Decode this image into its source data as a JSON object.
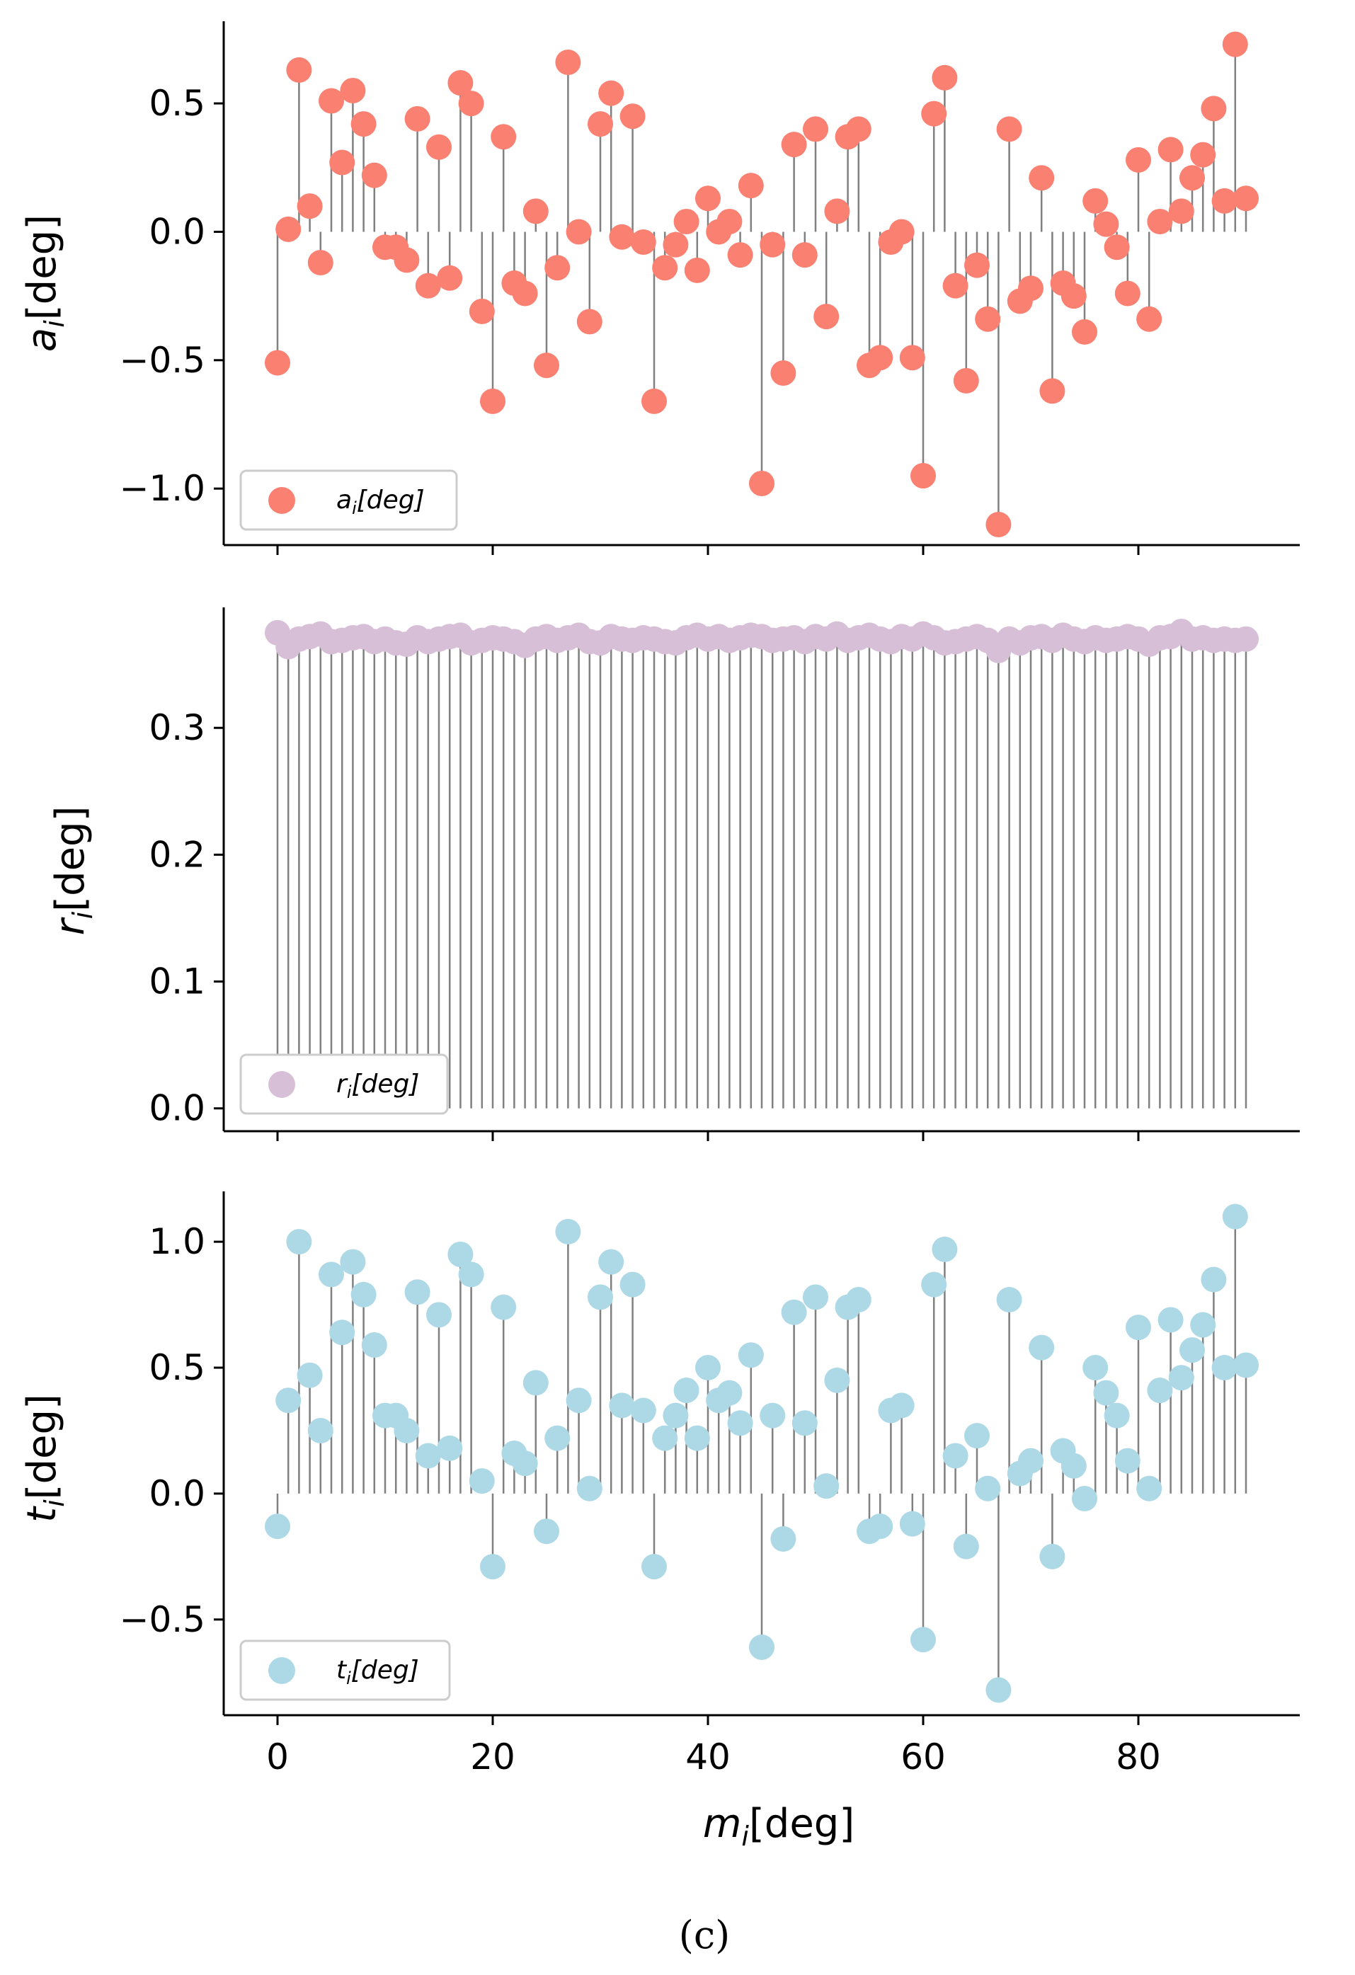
{
  "figure_caption": "(c)",
  "x_tick_labels": [
    "0",
    "20",
    "40",
    "60",
    "80"
  ],
  "chart_data": [
    {
      "type": "stem",
      "panel": "top",
      "series_name": "a_i[deg]",
      "xlabel_main": "m",
      "xlabel_sub": "i",
      "xlabel_rest": "[deg]",
      "ylabel_main": "a",
      "ylabel_sub": "i",
      "ylabel_rest": "[deg]",
      "legend_main": "a",
      "legend_sub": "i",
      "legend_rest": "[deg]",
      "legend_position": "lower-left",
      "color": "#fa8072",
      "xlim": [
        -5,
        95
      ],
      "ylim": [
        -1.22,
        0.82
      ],
      "yticks": [
        -1.0,
        -0.5,
        0.0,
        0.5
      ],
      "ytick_labels": [
        "−1.0",
        "−0.5",
        "0.0",
        "0.5"
      ],
      "show_x_tick_labels": false,
      "x": [
        0,
        1,
        2,
        3,
        4,
        5,
        6,
        7,
        8,
        9,
        10,
        11,
        12,
        13,
        14,
        15,
        16,
        17,
        18,
        19,
        20,
        21,
        22,
        23,
        24,
        25,
        26,
        27,
        28,
        29,
        30,
        31,
        32,
        33,
        34,
        35,
        36,
        37,
        38,
        39,
        40,
        41,
        42,
        43,
        44,
        45,
        46,
        47,
        48,
        49,
        50,
        51,
        52,
        53,
        54,
        55,
        56,
        57,
        58,
        59,
        60,
        61,
        62,
        63,
        64,
        65,
        66,
        67,
        68,
        69,
        70,
        71,
        72,
        73,
        74,
        75,
        76,
        77,
        78,
        79,
        80,
        81,
        82,
        83,
        84,
        85,
        86,
        87,
        88,
        89,
        90
      ],
      "values": [
        -0.51,
        0.01,
        0.63,
        0.1,
        -0.12,
        0.51,
        0.27,
        0.55,
        0.42,
        0.22,
        -0.06,
        -0.06,
        -0.11,
        0.44,
        -0.21,
        0.33,
        -0.18,
        0.58,
        0.5,
        -0.31,
        -0.66,
        0.37,
        -0.2,
        -0.24,
        0.08,
        -0.52,
        -0.14,
        0.66,
        0.0,
        -0.35,
        0.42,
        0.54,
        -0.02,
        0.45,
        -0.04,
        -0.66,
        -0.14,
        -0.05,
        0.04,
        -0.15,
        0.13,
        0.0,
        0.04,
        -0.09,
        0.18,
        -0.98,
        -0.05,
        -0.55,
        0.34,
        -0.09,
        0.4,
        -0.33,
        0.08,
        0.37,
        0.4,
        -0.52,
        -0.49,
        -0.04,
        0.0,
        -0.49,
        -0.95,
        0.46,
        0.6,
        -0.21,
        -0.58,
        -0.13,
        -0.34,
        -1.14,
        0.4,
        -0.27,
        -0.22,
        0.21,
        -0.62,
        -0.2,
        -0.25,
        -0.39,
        0.12,
        0.03,
        -0.06,
        -0.24,
        0.28,
        -0.34,
        0.04,
        0.32,
        0.08,
        0.21,
        0.3,
        0.48,
        0.12,
        0.73,
        0.13
      ]
    },
    {
      "type": "stem",
      "panel": "middle",
      "series_name": "r_i[deg]",
      "ylabel_main": "r",
      "ylabel_sub": "i",
      "ylabel_rest": "[deg]",
      "legend_main": "r",
      "legend_sub": "i",
      "legend_rest": "[deg]",
      "legend_position": "lower-left",
      "color": "#d8bfd8",
      "xlim": [
        -5,
        95
      ],
      "ylim": [
        -0.018,
        0.395
      ],
      "yticks": [
        0.0,
        0.1,
        0.2,
        0.3
      ],
      "ytick_labels": [
        "0.0",
        "0.1",
        "0.2",
        "0.3"
      ],
      "show_x_tick_labels": false,
      "x": [
        0,
        1,
        2,
        3,
        4,
        5,
        6,
        7,
        8,
        9,
        10,
        11,
        12,
        13,
        14,
        15,
        16,
        17,
        18,
        19,
        20,
        21,
        22,
        23,
        24,
        25,
        26,
        27,
        28,
        29,
        30,
        31,
        32,
        33,
        34,
        35,
        36,
        37,
        38,
        39,
        40,
        41,
        42,
        43,
        44,
        45,
        46,
        47,
        48,
        49,
        50,
        51,
        52,
        53,
        54,
        55,
        56,
        57,
        58,
        59,
        60,
        61,
        62,
        63,
        64,
        65,
        66,
        67,
        68,
        69,
        70,
        71,
        72,
        73,
        74,
        75,
        76,
        77,
        78,
        79,
        80,
        81,
        82,
        83,
        84,
        85,
        86,
        87,
        88,
        89,
        90
      ],
      "values": [
        0.375,
        0.364,
        0.37,
        0.372,
        0.374,
        0.368,
        0.369,
        0.371,
        0.372,
        0.368,
        0.37,
        0.367,
        0.366,
        0.371,
        0.368,
        0.37,
        0.372,
        0.373,
        0.367,
        0.369,
        0.371,
        0.37,
        0.368,
        0.365,
        0.37,
        0.372,
        0.369,
        0.371,
        0.373,
        0.368,
        0.367,
        0.372,
        0.37,
        0.369,
        0.371,
        0.37,
        0.368,
        0.367,
        0.371,
        0.373,
        0.37,
        0.372,
        0.369,
        0.371,
        0.373,
        0.372,
        0.369,
        0.37,
        0.371,
        0.368,
        0.372,
        0.37,
        0.374,
        0.369,
        0.371,
        0.373,
        0.37,
        0.368,
        0.372,
        0.37,
        0.374,
        0.371,
        0.367,
        0.368,
        0.37,
        0.372,
        0.369,
        0.361,
        0.37,
        0.367,
        0.371,
        0.372,
        0.369,
        0.373,
        0.37,
        0.368,
        0.371,
        0.369,
        0.37,
        0.372,
        0.37,
        0.366,
        0.371,
        0.372,
        0.376,
        0.37,
        0.371,
        0.369,
        0.37,
        0.369,
        0.37
      ]
    },
    {
      "type": "stem",
      "panel": "bottom",
      "series_name": "t_i[deg]",
      "xlabel_main": "m",
      "xlabel_sub": "i",
      "xlabel_rest": "[deg]",
      "ylabel_main": "t",
      "ylabel_sub": "i",
      "ylabel_rest": "[deg]",
      "legend_main": "t",
      "legend_sub": "i",
      "legend_rest": "[deg]",
      "legend_position": "lower-left",
      "color": "#add8e6",
      "xlim": [
        -5,
        95
      ],
      "ylim": [
        -0.88,
        1.2
      ],
      "yticks": [
        -0.5,
        0.0,
        0.5,
        1.0
      ],
      "ytick_labels": [
        "−0.5",
        "0.0",
        "0.5",
        "1.0"
      ],
      "show_x_tick_labels": true,
      "x": [
        0,
        1,
        2,
        3,
        4,
        5,
        6,
        7,
        8,
        9,
        10,
        11,
        12,
        13,
        14,
        15,
        16,
        17,
        18,
        19,
        20,
        21,
        22,
        23,
        24,
        25,
        26,
        27,
        28,
        29,
        30,
        31,
        32,
        33,
        34,
        35,
        36,
        37,
        38,
        39,
        40,
        41,
        42,
        43,
        44,
        45,
        46,
        47,
        48,
        49,
        50,
        51,
        52,
        53,
        54,
        55,
        56,
        57,
        58,
        59,
        60,
        61,
        62,
        63,
        64,
        65,
        66,
        67,
        68,
        69,
        70,
        71,
        72,
        73,
        74,
        75,
        76,
        77,
        78,
        79,
        80,
        81,
        82,
        83,
        84,
        85,
        86,
        87,
        88,
        89,
        90
      ],
      "values": [
        -0.13,
        0.37,
        1.0,
        0.47,
        0.25,
        0.87,
        0.64,
        0.92,
        0.79,
        0.59,
        0.31,
        0.31,
        0.25,
        0.8,
        0.15,
        0.71,
        0.18,
        0.95,
        0.87,
        0.05,
        -0.29,
        0.74,
        0.16,
        0.12,
        0.44,
        -0.15,
        0.22,
        1.04,
        0.37,
        0.02,
        0.78,
        0.92,
        0.35,
        0.83,
        0.33,
        -0.29,
        0.22,
        0.31,
        0.41,
        0.22,
        0.5,
        0.37,
        0.4,
        0.28,
        0.55,
        -0.61,
        0.31,
        -0.18,
        0.72,
        0.28,
        0.78,
        0.03,
        0.45,
        0.74,
        0.77,
        -0.15,
        -0.13,
        0.33,
        0.35,
        -0.12,
        -0.58,
        0.83,
        0.97,
        0.15,
        -0.21,
        0.23,
        0.02,
        -0.78,
        0.77,
        0.08,
        0.13,
        0.58,
        -0.25,
        0.17,
        0.11,
        -0.02,
        0.5,
        0.4,
        0.31,
        0.13,
        0.66,
        0.02,
        0.41,
        0.69,
        0.46,
        0.57,
        0.67,
        0.85,
        0.5,
        1.1,
        0.51
      ]
    }
  ]
}
